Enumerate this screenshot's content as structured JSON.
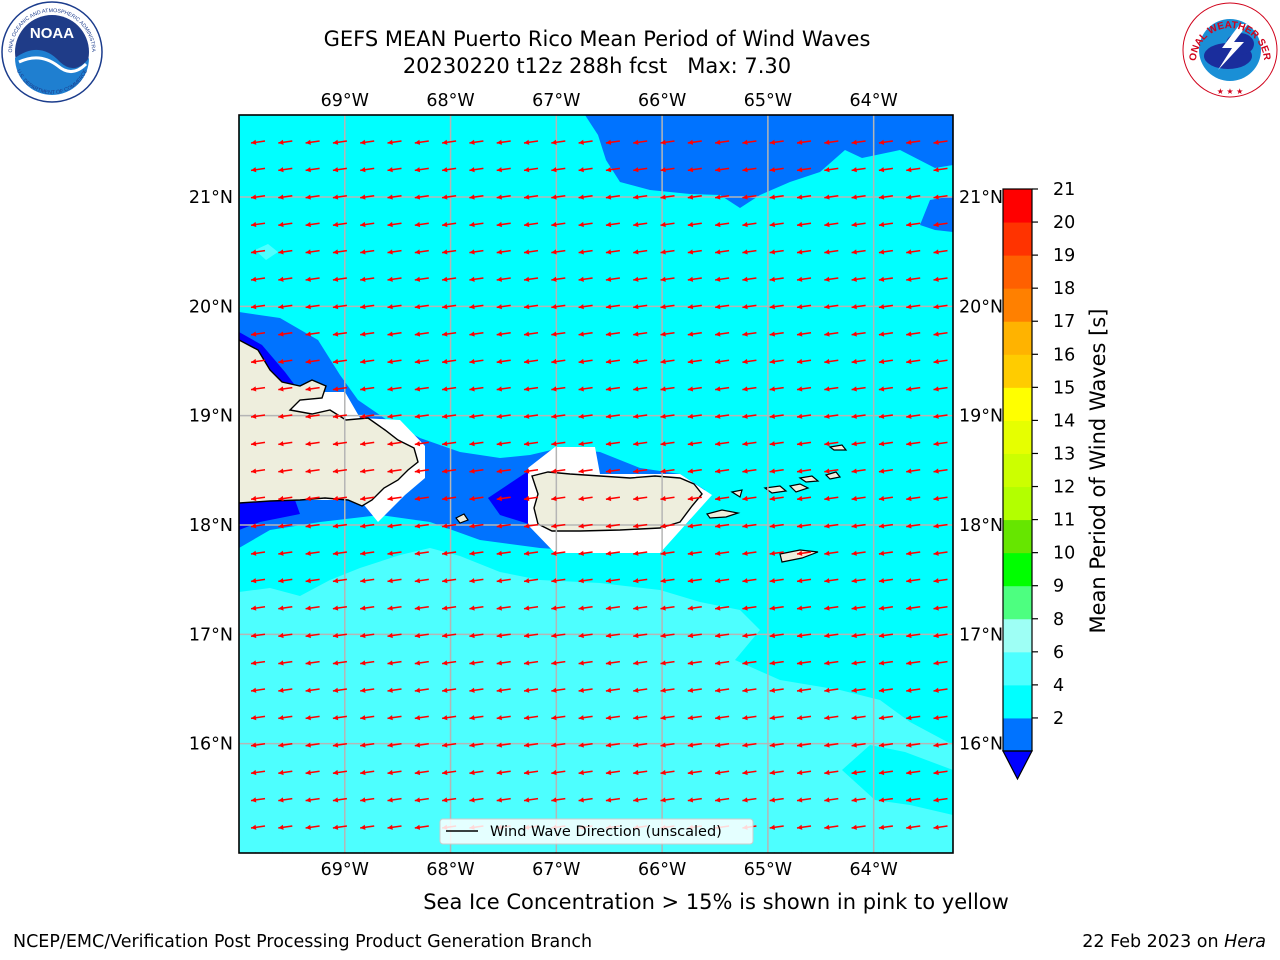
{
  "header": {
    "title": "GEFS MEAN Puerto Rico Mean Period of Wind Waves",
    "subtitle": "20230220 t12z 288h fcst   Max: 7.30"
  },
  "logos": {
    "left": {
      "name": "NOAA",
      "ring_text": "NATIONAL OCEANIC AND ATMOSPHERIC ADMINISTRATION",
      "ring_text_bottom": "U.S. DEPARTMENT OF COMMERCE"
    },
    "right": {
      "ring_text": "NATIONAL WEATHER SERVICE"
    }
  },
  "map": {
    "lon_labels": [
      "69°W",
      "68°W",
      "67°W",
      "66°W",
      "65°W",
      "64°W"
    ],
    "lat_labels": [
      "21°N",
      "20°N",
      "19°N",
      "18°N",
      "17°N",
      "16°N"
    ],
    "lon_range": [
      -70.0,
      -63.25
    ],
    "lat_range": [
      15.0,
      21.75
    ],
    "ocean_color": "#00ffff",
    "land_color": "#eeeedd",
    "arrow_color": "#ff0000",
    "arrow_direction": "toward west (easterly trade-wind waves)",
    "legend_label": "Wind Wave Direction (unscaled)"
  },
  "colorbar": {
    "label": "Mean Period of Wind Waves [s]",
    "ticks": [
      "21",
      "20",
      "19",
      "18",
      "17",
      "16",
      "15",
      "14",
      "13",
      "12",
      "11",
      "10",
      "9",
      "8",
      "6",
      "4",
      "2"
    ],
    "bins": [
      {
        "range": "2-4",
        "color": "#0073ff"
      },
      {
        "range": "4-6",
        "color": "#00ffff"
      },
      {
        "range": "6-8",
        "color": "#4dffff"
      },
      {
        "range": "8-9",
        "color": "#9efff5"
      },
      {
        "range": "9-10",
        "color": "#4dff80"
      },
      {
        "range": "10-11",
        "color": "#00ff00"
      },
      {
        "range": "11-12",
        "color": "#66e600"
      },
      {
        "range": "12-13",
        "color": "#b3ff00"
      },
      {
        "range": "13-14",
        "color": "#ccff00"
      },
      {
        "range": "14-15",
        "color": "#e6ff00"
      },
      {
        "range": "15-16",
        "color": "#ffff00"
      },
      {
        "range": "16-17",
        "color": "#ffcc00"
      },
      {
        "range": "17-18",
        "color": "#ffb300"
      },
      {
        "range": "18-19",
        "color": "#ff8000"
      },
      {
        "range": "19-20",
        "color": "#ff6000"
      },
      {
        "range": "20-21",
        "color": "#ff3300"
      },
      {
        "range": ">21",
        "color": "#ff0000"
      }
    ],
    "under_color": "#0000ff"
  },
  "note": "Sea Ice Concentration > 15% is shown in pink to yellow",
  "footer": {
    "left": "NCEP/EMC/Verification Post Processing Product Generation Branch",
    "right_prefix": "22 Feb 2023 on ",
    "right_host": "Hera"
  }
}
